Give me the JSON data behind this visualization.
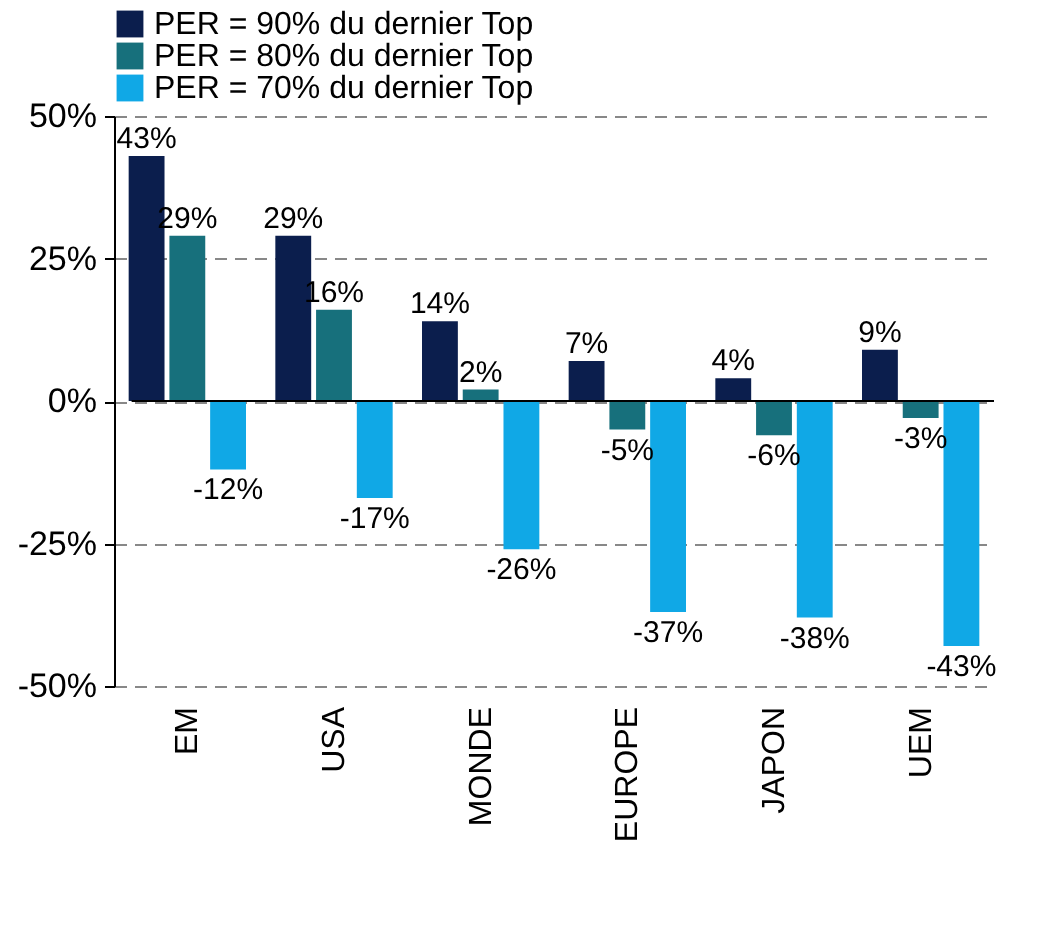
{
  "chart_data": {
    "type": "bar",
    "categories": [
      "EM",
      "USA",
      "MONDE",
      "EUROPE",
      "JAPON",
      "UEM"
    ],
    "series": [
      {
        "name": "PER = 90% du dernier Top",
        "color": "#0b1e4d",
        "values": [
          43,
          29,
          14,
          7,
          4,
          9
        ],
        "value_labels": [
          "43%",
          "29%",
          "14%",
          "7%",
          "4%",
          "9%"
        ]
      },
      {
        "name": "PER = 80% du dernier Top",
        "color": "#17707c",
        "values": [
          29,
          16,
          2,
          -5,
          -6,
          -3
        ],
        "value_labels": [
          "29%",
          "16%",
          "2%",
          "-5%",
          "-6%",
          "-3%"
        ]
      },
      {
        "name": "PER = 70% du dernier Top",
        "color": "#10a8e6",
        "values": [
          -12,
          -17,
          -26,
          -37,
          -38,
          -43
        ],
        "value_labels": [
          "-12%",
          "-17%",
          "-26%",
          "-37%",
          "-38%",
          "-43%"
        ]
      }
    ],
    "ylim": [
      -50,
      50
    ],
    "yticks": [
      {
        "value": -50,
        "label": "-50%"
      },
      {
        "value": -25,
        "label": "-25%"
      },
      {
        "value": 0,
        "label": "0%"
      },
      {
        "value": 25,
        "label": "25%"
      },
      {
        "value": 50,
        "label": "50%"
      }
    ],
    "grid": "y",
    "legend": "top"
  }
}
